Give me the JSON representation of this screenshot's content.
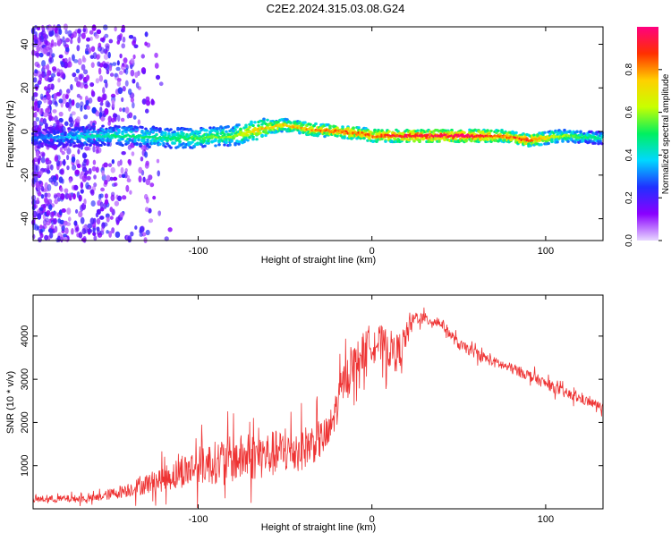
{
  "title": "C2E2.2024.315.03.08.G24",
  "chart_data": [
    {
      "type": "heatmap",
      "xlabel": "Height of straight line (km)",
      "ylabel": "Frequency (Hz)",
      "xlim": [
        -195,
        133
      ],
      "ylim": [
        -50,
        48
      ],
      "xticks": [
        -100,
        0,
        100
      ],
      "yticks": [
        -40,
        -20,
        0,
        20,
        40
      ],
      "colorbar": {
        "label": "Normalized spectral amplitude",
        "ticks": [
          "0.0",
          "0.2",
          "0.4",
          "0.6",
          "0.8"
        ],
        "range": [
          0,
          1
        ],
        "colors": [
          "#e8d8ff",
          "#8a00ff",
          "#2030ff",
          "#00d8ff",
          "#00f060",
          "#c8ff00",
          "#ffd000",
          "#ff3000",
          "#ff0080"
        ]
      },
      "ridge": [
        {
          "x": -190,
          "y": -3,
          "amp": 0.3
        },
        {
          "x": -160,
          "y": -2,
          "amp": 0.45
        },
        {
          "x": -140,
          "y": -2,
          "amp": 0.5
        },
        {
          "x": -120,
          "y": -3,
          "amp": 0.5
        },
        {
          "x": -100,
          "y": -3,
          "amp": 0.55
        },
        {
          "x": -80,
          "y": -2,
          "amp": 0.6
        },
        {
          "x": -65,
          "y": 1,
          "amp": 0.75
        },
        {
          "x": -50,
          "y": 3,
          "amp": 0.75
        },
        {
          "x": -35,
          "y": 1,
          "amp": 0.8
        },
        {
          "x": -20,
          "y": 0,
          "amp": 0.85
        },
        {
          "x": -5,
          "y": -1,
          "amp": 0.85
        },
        {
          "x": 0,
          "y": -2,
          "amp": 0.85
        },
        {
          "x": 20,
          "y": -2,
          "amp": 0.95
        },
        {
          "x": 50,
          "y": -2,
          "amp": 1.0
        },
        {
          "x": 75,
          "y": -2,
          "amp": 0.85
        },
        {
          "x": 90,
          "y": -4,
          "amp": 0.9
        },
        {
          "x": 110,
          "y": -2,
          "amp": 0.6
        },
        {
          "x": 133,
          "y": -3,
          "amp": 0.45
        }
      ]
    },
    {
      "type": "line",
      "xlabel": "Height of straight line (km)",
      "ylabel": "SNR (10 * v/v)",
      "xlim": [
        -195,
        133
      ],
      "ylim": [
        0,
        4950
      ],
      "xticks": [
        -100,
        0,
        100
      ],
      "yticks": [
        1000,
        2000,
        3000,
        4000
      ],
      "color": "#ee3333",
      "baseline": [
        {
          "x": -195,
          "y": 220,
          "noise": 160
        },
        {
          "x": -160,
          "y": 240,
          "noise": 180
        },
        {
          "x": -140,
          "y": 450,
          "noise": 350
        },
        {
          "x": -120,
          "y": 700,
          "noise": 600
        },
        {
          "x": -100,
          "y": 1000,
          "noise": 900
        },
        {
          "x": -80,
          "y": 1150,
          "noise": 1100
        },
        {
          "x": -60,
          "y": 1250,
          "noise": 1100
        },
        {
          "x": -40,
          "y": 1400,
          "noise": 1000
        },
        {
          "x": -25,
          "y": 1700,
          "noise": 900
        },
        {
          "x": -15,
          "y": 3100,
          "noise": 900
        },
        {
          "x": 0,
          "y": 3900,
          "noise": 900
        },
        {
          "x": 15,
          "y": 3600,
          "noise": 900
        },
        {
          "x": 25,
          "y": 4450,
          "noise": 300
        },
        {
          "x": 40,
          "y": 4300,
          "noise": 250
        },
        {
          "x": 50,
          "y": 3800,
          "noise": 250
        },
        {
          "x": 70,
          "y": 3400,
          "noise": 250
        },
        {
          "x": 90,
          "y": 3100,
          "noise": 250
        },
        {
          "x": 110,
          "y": 2700,
          "noise": 250
        },
        {
          "x": 133,
          "y": 2350,
          "noise": 200
        }
      ]
    }
  ]
}
